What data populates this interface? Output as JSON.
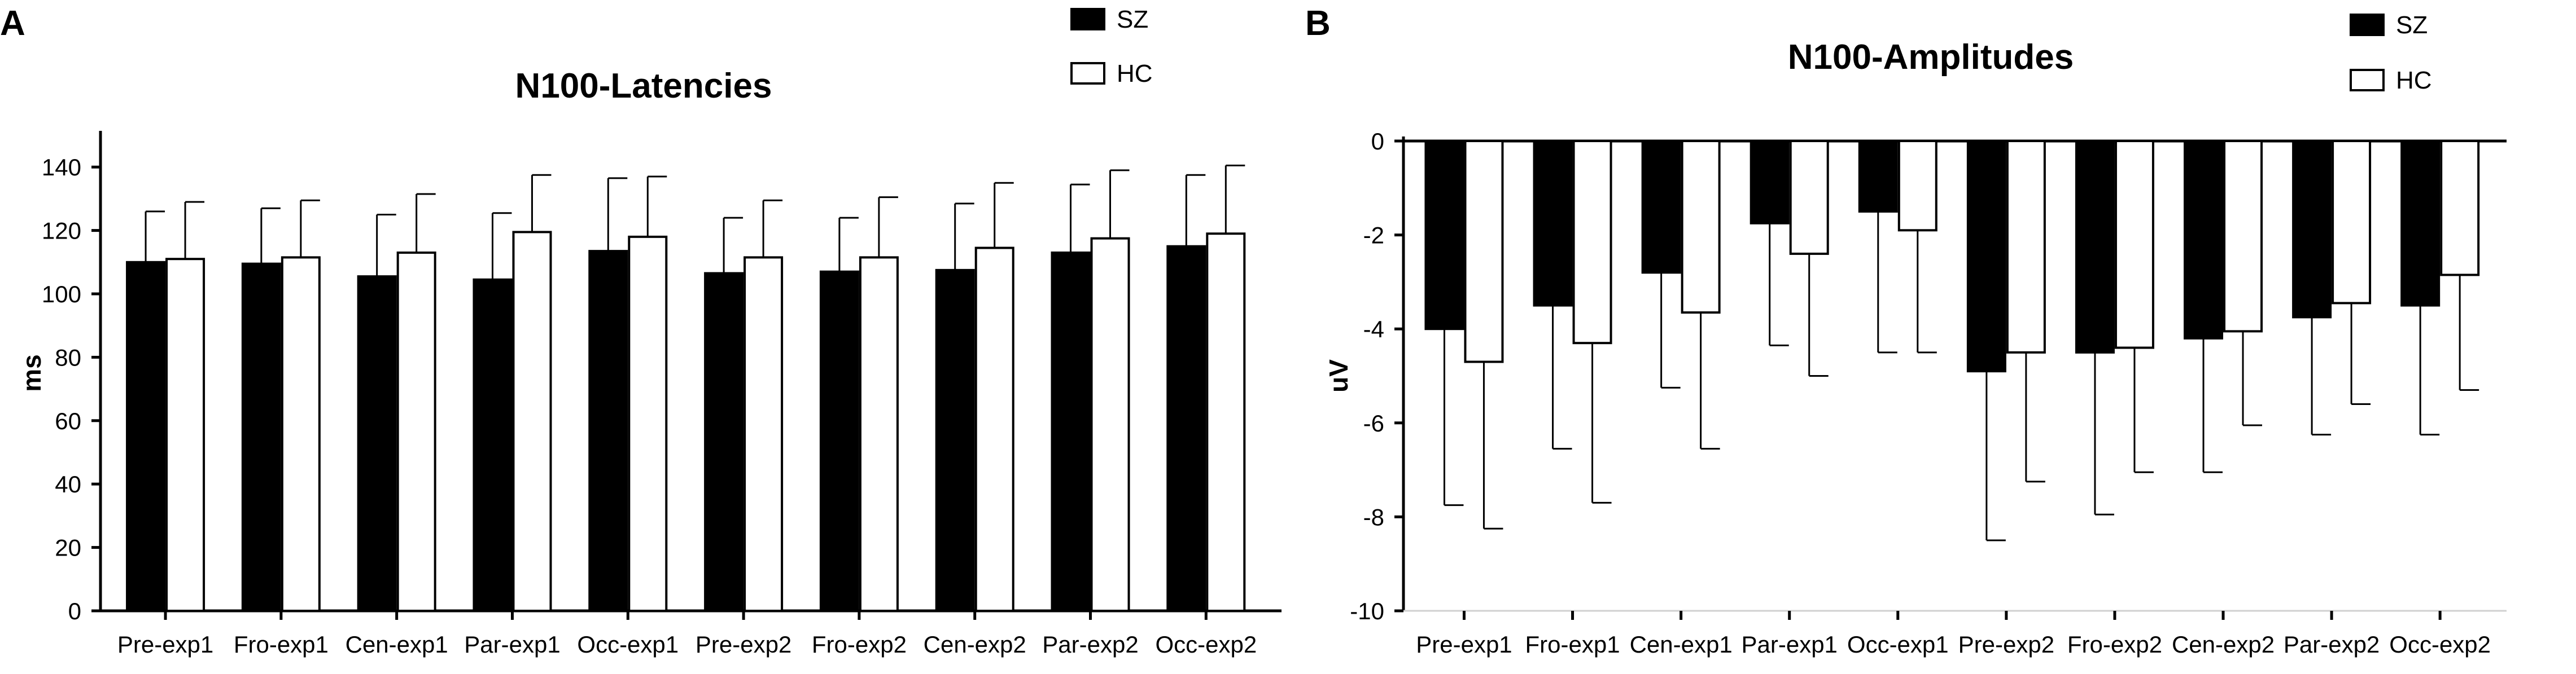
{
  "chart_data": [
    {
      "panel_label": "A",
      "type": "bar",
      "title": "N100-Latencies",
      "xlabel": "",
      "ylabel": "ms",
      "ylim": [
        0,
        150
      ],
      "yticks": [
        0,
        20,
        40,
        60,
        80,
        100,
        120,
        140
      ],
      "categories": [
        "Pre-exp1",
        "Fro-exp1",
        "Cen-exp1",
        "Par-exp1",
        "Occ-exp1",
        "Pre-exp2",
        "Fro-exp2",
        "Cen-exp2",
        "Par-exp2",
        "Occ-exp2"
      ],
      "series": [
        {
          "name": "SZ",
          "color": "#000000",
          "values": [
            110,
            109.5,
            105.5,
            104.5,
            113.5,
            106.5,
            107,
            107.5,
            113,
            115
          ],
          "errors": [
            16,
            17.5,
            19.5,
            21,
            23,
            17.5,
            17,
            21,
            21.5,
            22.5
          ]
        },
        {
          "name": "HC",
          "color": "#ffffff",
          "values": [
            111,
            111.5,
            113,
            119.5,
            118,
            111.5,
            111.5,
            114.5,
            117.5,
            119
          ],
          "errors": [
            18,
            18,
            18.5,
            18,
            19,
            18,
            19,
            20.5,
            21.5,
            21.5
          ]
        }
      ],
      "grid": false,
      "legend": "top-right"
    },
    {
      "panel_label": "B",
      "type": "bar",
      "title": "N100-Amplitudes",
      "xlabel": "",
      "ylabel": "uV",
      "ylim": [
        -10,
        0
      ],
      "yticks": [
        0,
        -2,
        -4,
        -6,
        -8,
        -10
      ],
      "categories": [
        "Pre-exp1",
        "Fro-exp1",
        "Cen-exp1",
        "Par-exp1",
        "Occ-exp1",
        "Pre-exp2",
        "Fro-exp2",
        "Cen-exp2",
        "Par-exp2",
        "Occ-exp2"
      ],
      "series": [
        {
          "name": "SZ",
          "color": "#000000",
          "values": [
            -4.0,
            -3.5,
            -2.8,
            -1.75,
            -1.5,
            -4.9,
            -4.5,
            -4.2,
            -3.75,
            -3.5
          ],
          "errors": [
            3.75,
            3.05,
            2.45,
            2.6,
            3.0,
            3.6,
            3.45,
            2.85,
            2.5,
            2.75
          ]
        },
        {
          "name": "HC",
          "color": "#ffffff",
          "values": [
            -4.7,
            -4.3,
            -3.65,
            -2.4,
            -1.9,
            -4.5,
            -4.4,
            -4.05,
            -3.45,
            -2.85
          ],
          "errors": [
            3.55,
            3.4,
            2.9,
            2.6,
            2.6,
            2.75,
            2.65,
            2.0,
            2.15,
            2.45
          ]
        }
      ],
      "grid": false,
      "legend": "top-right"
    }
  ]
}
